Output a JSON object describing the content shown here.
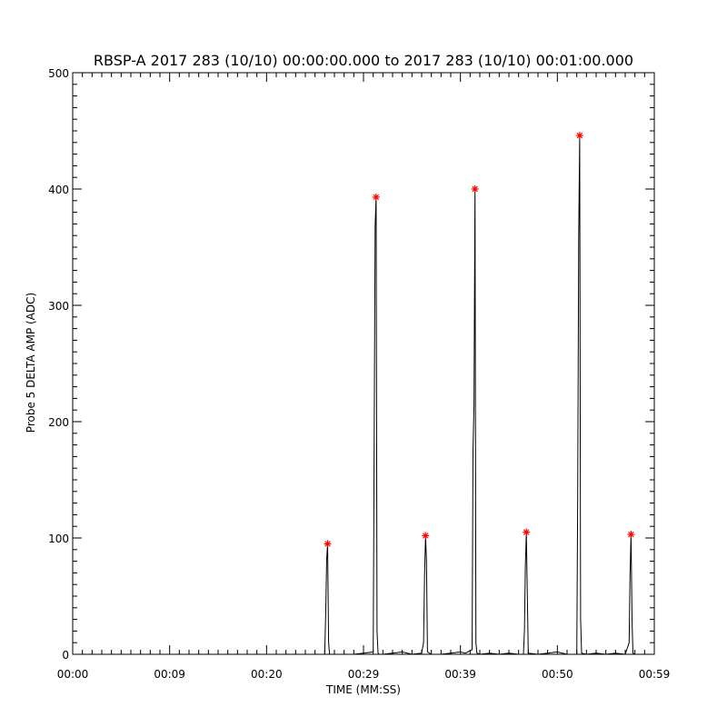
{
  "chart_data": {
    "type": "line",
    "title": "RBSP-A 2017 283 (10/10) 00:00:00.000 to 2017 283 (10/10) 00:01:00.000",
    "xlabel": "TIME (MM:SS)",
    "ylabel": "Probe 5 DELTA AMP (ADC)",
    "xlim": [
      0,
      60
    ],
    "ylim": [
      0,
      500
    ],
    "x_ticks": [
      {
        "value": 0,
        "label": "00:00"
      },
      {
        "value": 10,
        "label": "00:09"
      },
      {
        "value": 20,
        "label": "00:20"
      },
      {
        "value": 30,
        "label": "00:29"
      },
      {
        "value": 40,
        "label": "00:39"
      },
      {
        "value": 50,
        "label": "00:50"
      },
      {
        "value": 60,
        "label": "00:59"
      }
    ],
    "y_ticks": [
      0,
      100,
      200,
      300,
      400,
      500
    ],
    "series": [
      {
        "color": "#000000",
        "x": [
          0,
          26.0,
          26.1,
          26.2,
          26.3,
          26.4,
          26.5,
          27.0,
          28.0,
          29.0,
          30.0,
          31.0,
          31.1,
          31.2,
          31.3,
          31.4,
          31.5,
          31.6,
          32.0,
          33.0,
          34.0,
          35.0,
          36.0,
          36.2,
          36.3,
          36.4,
          36.5,
          36.6,
          37.0,
          38.0,
          39.0,
          40.0,
          40.5,
          41.2,
          41.3,
          41.4,
          41.5,
          41.6,
          41.7,
          42.0,
          43.0,
          44.0,
          45.0,
          46.0,
          46.5,
          46.6,
          46.7,
          46.8,
          46.9,
          47.0,
          48.0,
          49.0,
          50.0,
          51.0,
          52.0,
          52.1,
          52.2,
          52.3,
          52.4,
          52.5,
          53.0,
          54.0,
          55.0,
          56.0,
          57.0,
          57.4,
          57.5,
          57.6,
          57.7,
          57.8,
          58.0,
          58.5,
          60
        ],
        "values": [
          0,
          0,
          35,
          82,
          95,
          10,
          0,
          0,
          0,
          0,
          1,
          2,
          175,
          368,
          393,
          20,
          1,
          0,
          0,
          1,
          2,
          0,
          1,
          10,
          68,
          102,
          80,
          2,
          0,
          0,
          1,
          2,
          1,
          4,
          175,
          215,
          400,
          10,
          1,
          0,
          1,
          0,
          1,
          0,
          0,
          20,
          75,
          105,
          50,
          1,
          0,
          1,
          2,
          0,
          0,
          135,
          357,
          446,
          30,
          1,
          0,
          1,
          0,
          1,
          0,
          10,
          68,
          103,
          30,
          1,
          0,
          0,
          0
        ]
      }
    ],
    "peak_markers": {
      "color": "#ff0000",
      "symbol": "*",
      "points": [
        {
          "x": 26.3,
          "y": 95
        },
        {
          "x": 31.3,
          "y": 393
        },
        {
          "x": 36.4,
          "y": 102
        },
        {
          "x": 41.5,
          "y": 400
        },
        {
          "x": 46.8,
          "y": 105
        },
        {
          "x": 52.3,
          "y": 446
        },
        {
          "x": 57.6,
          "y": 103
        }
      ]
    }
  }
}
